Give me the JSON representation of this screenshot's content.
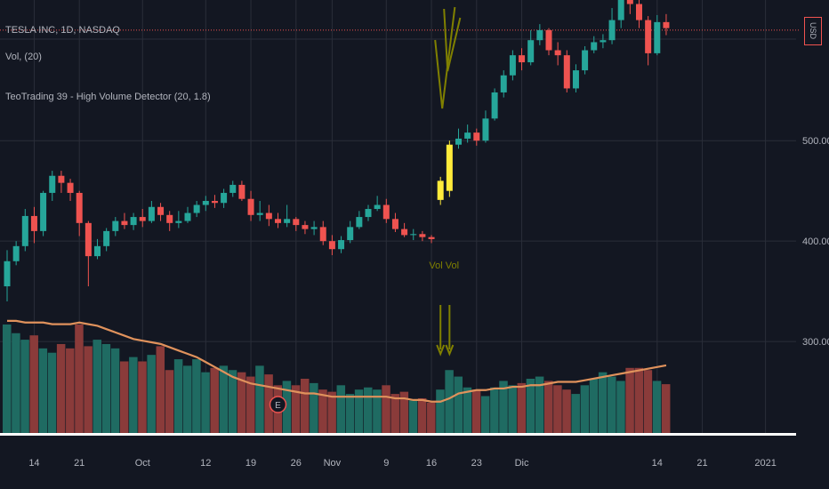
{
  "legend": {
    "symbol": "TESLA INC, 1D, NASDAQ",
    "volume": "Vol, (20)",
    "indicator": "TeoTrading 39 - High Volume Detector (20, 1.8)"
  },
  "currency_badge": "USD",
  "colors": {
    "background": "#131722",
    "grid": "#2a2e39",
    "up": "#26a69a",
    "down": "#ef5350",
    "highlight": "#ffeb3b",
    "volume_up": "#1f6b62",
    "volume_down": "#8a3b3a",
    "volume_ma": "#e0925c",
    "signal": "#808000",
    "axis_text": "#b2b5be"
  },
  "chart_data": {
    "type": "candlestick",
    "y_axis": {
      "ticks": [
        300,
        400,
        500
      ],
      "tick_labels": [
        "300.00",
        "400.00",
        "500.00"
      ],
      "range": [
        209,
        640
      ]
    },
    "x_axis": {
      "tick_labels": [
        {
          "label": "14",
          "index": 3
        },
        {
          "label": "21",
          "index": 8
        },
        {
          "label": "Oct",
          "index": 15
        },
        {
          "label": "12",
          "index": 22
        },
        {
          "label": "19",
          "index": 27
        },
        {
          "label": "26",
          "index": 32
        },
        {
          "label": "Nov",
          "index": 36
        },
        {
          "label": "9",
          "index": 42
        },
        {
          "label": "16",
          "index": 47
        },
        {
          "label": "23",
          "index": 52
        },
        {
          "label": "Dic",
          "index": 57
        },
        {
          "label": "14",
          "index": 72
        },
        {
          "label": "21",
          "index": 77
        },
        {
          "label": "2021",
          "index": 84
        }
      ]
    },
    "current_price_line": 610,
    "candles": [
      [
        355,
        380,
        391,
        340
      ],
      [
        380,
        395,
        400,
        376
      ],
      [
        395,
        425,
        432,
        390
      ],
      [
        425,
        410,
        434,
        398
      ],
      [
        410,
        448,
        450,
        405
      ],
      [
        448,
        465,
        470,
        440
      ],
      [
        465,
        458,
        470,
        448
      ],
      [
        458,
        448,
        462,
        440
      ],
      [
        448,
        418,
        450,
        405
      ],
      [
        418,
        385,
        420,
        355
      ],
      [
        385,
        395,
        402,
        382
      ],
      [
        395,
        410,
        413,
        390
      ],
      [
        410,
        420,
        424,
        405
      ],
      [
        420,
        416,
        428,
        412
      ],
      [
        416,
        424,
        428,
        411
      ],
      [
        424,
        420,
        432,
        414
      ],
      [
        420,
        434,
        440,
        418
      ],
      [
        434,
        426,
        438,
        420
      ],
      [
        426,
        418,
        430,
        410
      ],
      [
        418,
        420,
        430,
        413
      ],
      [
        420,
        428,
        434,
        418
      ],
      [
        428,
        436,
        440,
        424
      ],
      [
        436,
        440,
        445,
        430
      ],
      [
        440,
        438,
        446,
        433
      ],
      [
        438,
        448,
        452,
        433
      ],
      [
        448,
        456,
        460,
        444
      ],
      [
        456,
        442,
        460,
        440
      ],
      [
        442,
        426,
        450,
        420
      ],
      [
        426,
        428,
        440,
        420
      ],
      [
        428,
        422,
        436,
        415
      ],
      [
        422,
        418,
        428,
        413
      ],
      [
        418,
        422,
        436,
        414
      ],
      [
        422,
        416,
        424,
        410
      ],
      [
        416,
        412,
        420,
        407
      ],
      [
        412,
        414,
        420,
        406
      ],
      [
        414,
        400,
        420,
        396
      ],
      [
        400,
        392,
        406,
        386
      ],
      [
        392,
        401,
        405,
        388
      ],
      [
        401,
        414,
        420,
        398
      ],
      [
        414,
        424,
        430,
        412
      ],
      [
        424,
        432,
        436,
        420
      ],
      [
        432,
        436,
        445,
        430
      ],
      [
        436,
        422,
        442,
        418
      ],
      [
        422,
        412,
        428,
        409
      ],
      [
        412,
        406,
        418,
        404
      ],
      [
        406,
        407,
        412,
        401
      ],
      [
        407,
        404,
        410,
        400
      ],
      [
        404,
        402,
        406,
        398
      ],
      [
        441,
        460,
        464,
        436
      ],
      [
        450,
        496,
        500,
        444
      ],
      [
        496,
        502,
        512,
        492
      ],
      [
        502,
        508,
        516,
        498
      ],
      [
        508,
        500,
        512,
        495
      ],
      [
        500,
        522,
        530,
        498
      ],
      [
        522,
        548,
        552,
        520
      ],
      [
        548,
        565,
        570,
        543
      ],
      [
        565,
        585,
        590,
        560
      ],
      [
        585,
        578,
        592,
        570
      ],
      [
        578,
        600,
        610,
        575
      ],
      [
        600,
        610,
        616,
        595
      ],
      [
        610,
        590,
        612,
        585
      ],
      [
        590,
        585,
        598,
        575
      ],
      [
        585,
        552,
        590,
        548
      ],
      [
        552,
        570,
        576,
        548
      ],
      [
        570,
        590,
        594,
        566
      ],
      [
        590,
        598,
        604,
        587
      ],
      [
        598,
        600,
        606,
        592
      ],
      [
        600,
        620,
        632,
        596
      ],
      [
        620,
        640,
        648,
        612
      ],
      [
        640,
        636,
        645,
        626
      ],
      [
        636,
        620,
        640,
        612
      ],
      [
        620,
        587,
        624,
        575
      ],
      [
        587,
        618,
        625,
        585
      ],
      [
        618,
        612,
        626,
        605
      ]
    ],
    "highlight_candles": [
      48,
      49
    ],
    "volume": {
      "values": [
        100,
        92,
        86,
        90,
        78,
        74,
        82,
        78,
        100,
        80,
        86,
        82,
        78,
        66,
        70,
        66,
        72,
        80,
        58,
        68,
        62,
        68,
        56,
        60,
        62,
        58,
        56,
        52,
        62,
        54,
        44,
        48,
        44,
        50,
        46,
        40,
        38,
        44,
        36,
        40,
        42,
        40,
        44,
        36,
        38,
        30,
        32,
        28,
        40,
        58,
        52,
        42,
        40,
        34,
        42,
        48,
        44,
        46,
        50,
        52,
        48,
        44,
        40,
        36,
        44,
        50,
        56,
        52,
        48,
        60,
        60,
        58,
        48,
        45
      ],
      "ma": [
        68,
        68,
        67,
        67,
        67,
        66,
        66,
        66,
        67,
        66,
        65,
        63,
        61,
        59,
        57,
        56,
        55,
        54,
        52,
        50,
        48,
        46,
        43,
        40,
        37,
        34,
        32,
        30,
        29,
        28,
        27,
        26,
        25,
        24,
        24,
        23,
        22,
        22,
        22,
        22,
        22,
        22,
        22,
        21,
        21,
        20,
        20,
        19,
        19,
        21,
        24,
        25,
        26,
        26,
        27,
        27,
        28,
        28,
        29,
        29,
        30,
        31,
        31,
        31,
        32,
        33,
        34,
        35,
        36,
        37,
        38,
        39,
        40,
        41
      ]
    },
    "annotations": {
      "signal_text": "Vol Vol",
      "earnings_marker": "E",
      "signal_indices": [
        48,
        49
      ],
      "earnings_index": 30
    }
  }
}
